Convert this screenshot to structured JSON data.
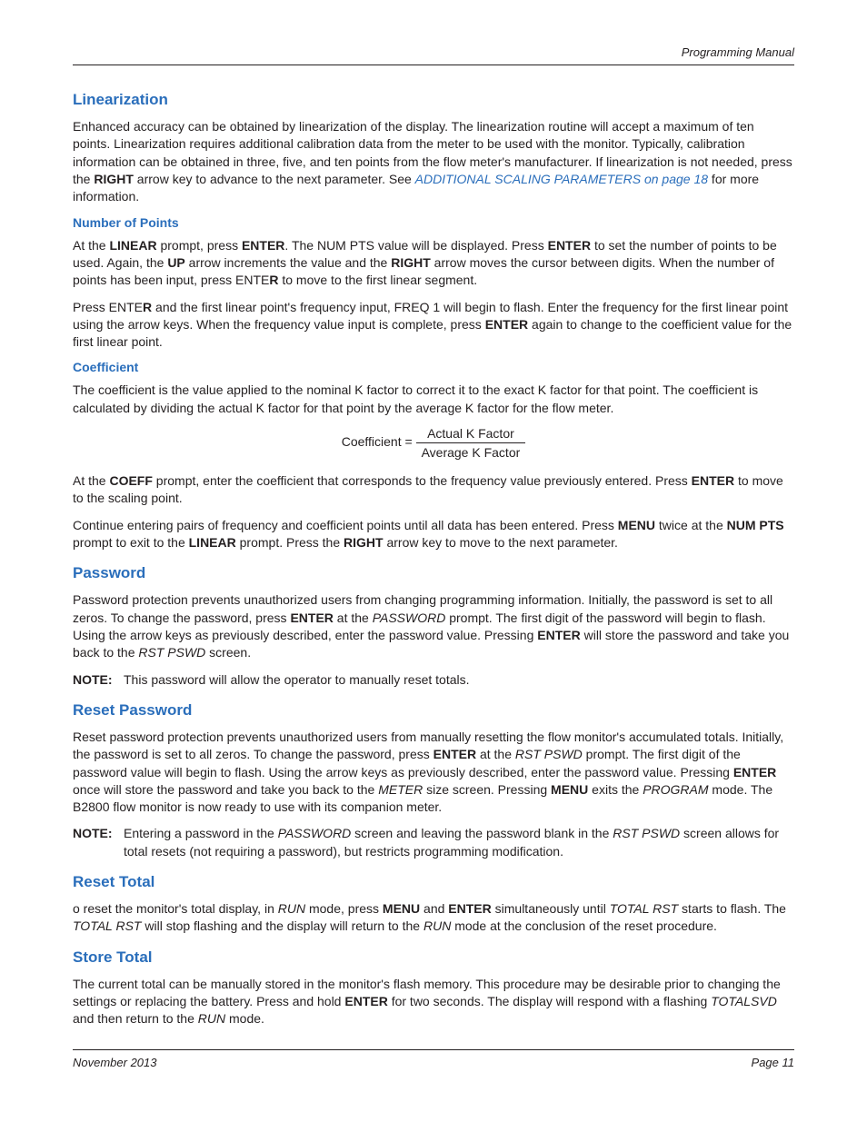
{
  "colors": {
    "heading_blue": "#2a6ebb",
    "body_text": "#231f20",
    "rule": "#231f20",
    "background": "#ffffff"
  },
  "typography": {
    "body_size_pt": 10.5,
    "heading_size_pt": 13,
    "subheading_size_pt": 10.5,
    "line_height": 1.38,
    "font_family": "Myriad Pro / Segoe UI / Helvetica"
  },
  "header": {
    "title": "Programming Manual"
  },
  "footer": {
    "date": "November 2013",
    "page": "Page 11"
  },
  "linearization": {
    "heading": "Linearization",
    "para1_pre": "Enhanced accuracy can be obtained by linearization of the display. The linearization routine will accept a maximum of ten points. Linearization requires additional calibration data from the meter to be used with the monitor. Typically, calibration information can be obtained in three, five, and ten points from the flow meter's manufacturer. If linearization is not needed, press the ",
    "right_bold": "RIGHT",
    "para1_mid": " arrow key to advance to the next parameter. See ",
    "link_text": "ADDITIONAL SCALING PARAMETERS on page 18",
    "para1_post": " for more information.",
    "num_points": {
      "heading": "Number of Points",
      "p1_a": "At the ",
      "p1_b": "LINEAR",
      "p1_c": " prompt, press ",
      "p1_d": "ENTER",
      "p1_e": ". The NUM PTS value will be displayed. Press ",
      "p1_f": "ENTER",
      "p1_g": " to set the number of points to be used. Again, the ",
      "p1_h": "UP",
      "p1_i": " arrow increments the value and the ",
      "p1_j": "RIGHT",
      "p1_k": " arrow moves the cursor between digits. When the number of points has been input, press ENTE",
      "p1_l": "R",
      "p1_m": " to move to the first linear segment.",
      "p2_a": "Press ENTE",
      "p2_b": "R",
      "p2_c": " and the first linear point's frequency input, FREQ 1 will begin to flash. Enter the frequency for the first linear point using the arrow keys. When the frequency value input is complete, press ",
      "p2_d": "ENTER",
      "p2_e": " again to change to the coefficient value for the first linear point."
    },
    "coeff": {
      "heading": "Coefficient",
      "p1": "The coefficient is the value applied to the nominal K factor to correct it to the exact K factor for that point. The coefficient is calculated by dividing the actual K factor for that point by the average K factor for the flow meter.",
      "formula_lhs": "Coefficient = ",
      "formula_num": "Actual K Factor",
      "formula_den": "Average K Factor",
      "p2_a": "At the ",
      "p2_b": "COEFF",
      "p2_c": " prompt, enter the coefficient that corresponds to the frequency value previously entered. Press ",
      "p2_d": "ENTER",
      "p2_e": " to move to the scaling point.",
      "p3_a": "Continue entering pairs of frequency and coefficient points until all data has been entered. Press ",
      "p3_b": "MENU",
      "p3_c": " twice at the ",
      "p3_d": "NUM PTS",
      "p3_e": " prompt to exit to the ",
      "p3_f": "LINEAR",
      "p3_g": " prompt. Press the ",
      "p3_h": "RIGHT",
      "p3_i": " arrow key to move to the next parameter."
    }
  },
  "password": {
    "heading": "Password",
    "p1_a": "Password protection prevents unauthorized users from changing programming information. Initially, the password is set to all zeros. To change the password, press ",
    "p1_b": "ENTER",
    "p1_c": " at the ",
    "p1_d": "PASSWORD",
    "p1_e": " prompt. The first digit of the password will begin to flash. Using the arrow keys as previously described, enter the password value. Pressing ",
    "p1_f": "ENTER",
    "p1_g": " will store the password and take you back to the ",
    "p1_h": "RST PSWD",
    "p1_i": " screen.",
    "note_label": "NOTE:",
    "note_text": "This password will allow the operator to manually reset totals."
  },
  "reset_password": {
    "heading": "Reset Password",
    "p1_a": "Reset password protection prevents unauthorized users from manually resetting the flow monitor's accumulated totals. Initially, the password is set to all zeros. To change the password, press ",
    "p1_b": "ENTER",
    "p1_c": " at the ",
    "p1_d": "RST PSWD",
    "p1_e": " prompt. The first digit of the password value will begin to flash. Using the arrow keys as previously described, enter the password value. Pressing ",
    "p1_f": "ENTER",
    "p1_g": " once will store the password and take you back to the ",
    "p1_h": "METER",
    "p1_i": " size screen. Pressing ",
    "p1_j": "MENU",
    "p1_k": " exits the ",
    "p1_l": "PROGRAM",
    "p1_m": " mode. The B2800 flow monitor is now ready to use with its companion meter.",
    "note_label": "NOTE:",
    "note_a": "Entering a password in the ",
    "note_b": "PASSWORD",
    "note_c": " screen and leaving the password blank in the ",
    "note_d": "RST PSWD",
    "note_e": " screen allows for total resets (not requiring a password), but restricts programming modification."
  },
  "reset_total": {
    "heading": "Reset Total",
    "p1_a": "o reset the monitor's total display, in ",
    "p1_b": "RUN",
    "p1_c": " mode, press ",
    "p1_d": "MENU",
    "p1_e": " and ",
    "p1_f": "ENTER",
    "p1_g": " simultaneously until ",
    "p1_h": "TOTAL RST",
    "p1_i": " starts to flash. The ",
    "p1_j": "TOTAL RST",
    "p1_k": " will stop flashing and the display will return to the ",
    "p1_l": "RUN",
    "p1_m": " mode at the conclusion of the reset procedure."
  },
  "store_total": {
    "heading": "Store Total",
    "p1_a": "The current total can be manually stored in the monitor's flash memory. This procedure may be desirable prior to changing the settings or replacing the battery. Press and hold ",
    "p1_b": "ENTER",
    "p1_c": " for two seconds. The display will respond with a flashing ",
    "p1_d": "TOTALSVD",
    "p1_e": " and then return to the ",
    "p1_f": "RUN",
    "p1_g": " mode."
  }
}
